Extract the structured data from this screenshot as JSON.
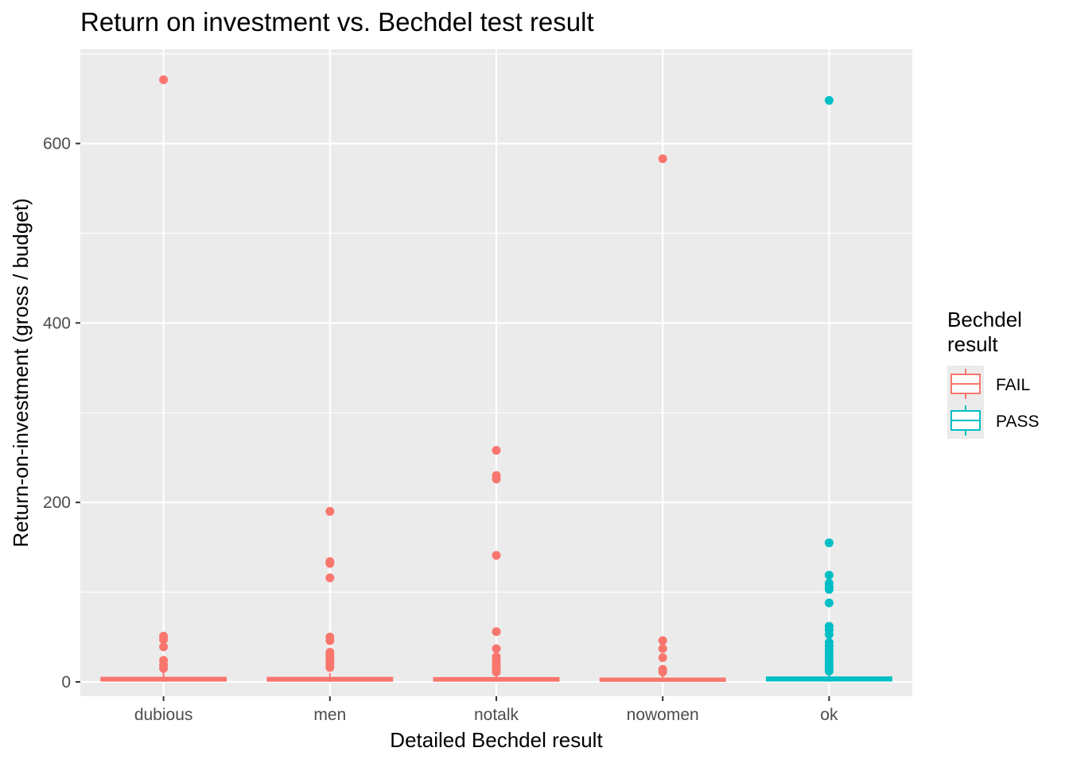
{
  "chart_data": {
    "type": "boxplot",
    "title": "Return on investment vs. Bechdel test result",
    "xlabel": "Detailed Bechdel result",
    "ylabel": "Return-on-investment (gross / budget)",
    "ylim": [
      -16,
      705
    ],
    "y_ticks": [
      0,
      200,
      400,
      600
    ],
    "categories": [
      "dubious",
      "men",
      "notalk",
      "nowomen",
      "ok"
    ],
    "grid": true,
    "legend": {
      "title": "Bechdel result",
      "placement": "right",
      "entries": [
        {
          "label": "FAIL",
          "color": "#F8766D"
        },
        {
          "label": "PASS",
          "color": "#00BFC4"
        }
      ]
    },
    "series": [
      {
        "category": "dubious",
        "group": "FAIL",
        "color": "#F8766D",
        "box": {
          "lower_whisker": 0.2,
          "q1": 1.2,
          "median": 2.6,
          "q3": 4.8,
          "upper_whisker": 11
        },
        "outliers": [
          671,
          51,
          47,
          39,
          24,
          19,
          15
        ]
      },
      {
        "category": "men",
        "group": "FAIL",
        "color": "#F8766D",
        "box": {
          "lower_whisker": 0.2,
          "q1": 1.1,
          "median": 2.5,
          "q3": 4.7,
          "upper_whisker": 10
        },
        "outliers": [
          190,
          134,
          132,
          116,
          50,
          46,
          33,
          30,
          27,
          24,
          20,
          16
        ]
      },
      {
        "category": "notalk",
        "group": "FAIL",
        "color": "#F8766D",
        "box": {
          "lower_whisker": 0.2,
          "q1": 1.1,
          "median": 2.4,
          "q3": 4.5,
          "upper_whisker": 10
        },
        "outliers": [
          258,
          230,
          226,
          141,
          56,
          37,
          28,
          24,
          20,
          16,
          13,
          11
        ]
      },
      {
        "category": "nowomen",
        "group": "FAIL",
        "color": "#F8766D",
        "box": {
          "lower_whisker": 0.1,
          "q1": 0.9,
          "median": 2.0,
          "q3": 3.9,
          "upper_whisker": 8
        },
        "outliers": [
          583,
          46,
          37,
          27,
          14,
          11
        ]
      },
      {
        "category": "ok",
        "group": "PASS",
        "color": "#00BFC4",
        "box": {
          "lower_whisker": 0.2,
          "q1": 1.3,
          "median": 2.8,
          "q3": 5.2,
          "upper_whisker": 11
        },
        "outliers": [
          648,
          155,
          119,
          110,
          106,
          103,
          88,
          62,
          58,
          53,
          44,
          40,
          36,
          32,
          28,
          24,
          20,
          17,
          14,
          12
        ]
      }
    ]
  }
}
